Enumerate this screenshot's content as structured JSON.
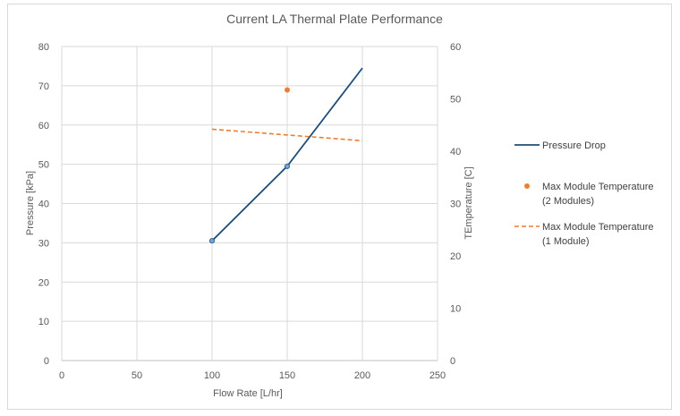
{
  "chart_data": {
    "type": "line",
    "title": "Current LA Thermal Plate Performance",
    "xlabel": "Flow Rate [L/hr]",
    "ylabel": "Pressure [kPa]",
    "y2label": "TEmperature [C]",
    "xlim": [
      0,
      250
    ],
    "ylim": [
      0,
      80
    ],
    "y2lim": [
      0,
      60
    ],
    "xticks": [
      0,
      50,
      100,
      150,
      200,
      250
    ],
    "yticks": [
      0,
      10,
      20,
      30,
      40,
      50,
      60,
      70,
      80
    ],
    "y2ticks": [
      0,
      10,
      20,
      30,
      40,
      50,
      60
    ],
    "grid": true,
    "legend_position": "right",
    "series": [
      {
        "name": "Pressure Drop",
        "axis": "left",
        "style": "solid",
        "color": "#1f4e79",
        "marker_color": "#6fa8dc",
        "points": [
          {
            "x": 100,
            "y": 30.5,
            "marker": true
          },
          {
            "x": 150,
            "y": 49.5,
            "marker": true
          },
          {
            "x": 200,
            "y": 74.5,
            "marker": false
          }
        ]
      },
      {
        "name": "Max Module Temperature (2 Modules)",
        "name_lines": [
          "Max Module Temperature",
          "(2 Modules)"
        ],
        "axis": "right",
        "style": "marker",
        "color": "#ed7d31",
        "points": [
          {
            "x": 150,
            "y": 51.7,
            "marker": true
          }
        ]
      },
      {
        "name": "Max Module Temperature (1 Module)",
        "name_lines": [
          "Max Module Temperature",
          "(1 Module)"
        ],
        "axis": "right",
        "style": "dashed",
        "color": "#ed7d31",
        "points": [
          {
            "x": 100,
            "y": 44.2,
            "marker": false
          },
          {
            "x": 200,
            "y": 42.0,
            "marker": false
          }
        ]
      }
    ]
  }
}
